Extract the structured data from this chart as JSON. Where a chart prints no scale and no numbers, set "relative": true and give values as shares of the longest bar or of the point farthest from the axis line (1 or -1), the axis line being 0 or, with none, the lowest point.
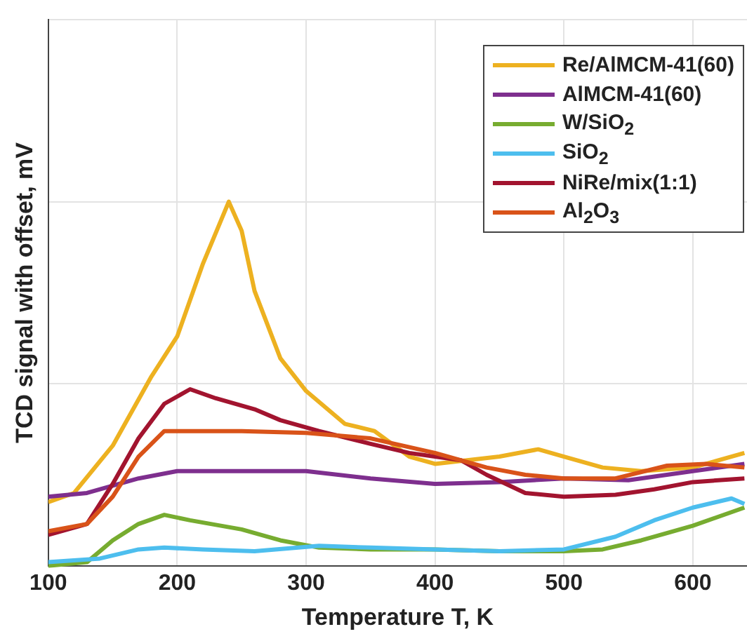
{
  "chart_data": {
    "type": "line",
    "xlabel": "Temperature T, K",
    "ylabel": "TCD signal with offset, mV",
    "relative": true,
    "grid": true,
    "legend": "top right",
    "marker": "none",
    "xlim": [
      100,
      642
    ],
    "xticks": [
      100,
      200,
      300,
      400,
      500,
      600
    ],
    "series": [
      {
        "name": "Re/AlMCM-41(60)",
        "color": "#edb120",
        "x": [
          100,
          120,
          150,
          180,
          200,
          220,
          240,
          250,
          260,
          280,
          300,
          330,
          353,
          380,
          400,
          450,
          480,
          500,
          530,
          560,
          600,
          640
        ],
        "values": [
          0.175,
          0.2,
          0.33,
          0.52,
          0.63,
          0.83,
          1.0,
          0.92,
          0.755,
          0.57,
          0.48,
          0.39,
          0.37,
          0.3,
          0.28,
          0.3,
          0.32,
          0.3,
          0.27,
          0.26,
          0.27,
          0.31
        ]
      },
      {
        "name": "AlMCM-41(60)",
        "color": "#7e2f8e",
        "x": [
          100,
          130,
          170,
          200,
          250,
          300,
          350,
          400,
          450,
          500,
          550,
          600,
          640
        ],
        "values": [
          0.19,
          0.2,
          0.24,
          0.26,
          0.26,
          0.26,
          0.24,
          0.225,
          0.23,
          0.24,
          0.235,
          0.26,
          0.28
        ]
      },
      {
        "name": "W/SiO$_{2}$",
        "color": "#77ac30",
        "x": [
          100,
          130,
          150,
          170,
          190,
          210,
          250,
          280,
          310,
          350,
          400,
          450,
          500,
          530,
          560,
          600,
          640
        ],
        "values": [
          0.0,
          0.01,
          0.07,
          0.115,
          0.14,
          0.125,
          0.1,
          0.07,
          0.05,
          0.045,
          0.045,
          0.04,
          0.04,
          0.045,
          0.07,
          0.11,
          0.16
        ]
      },
      {
        "name": "SiO$_{2}$",
        "color": "#4dbeee",
        "x": [
          100,
          140,
          170,
          190,
          220,
          260,
          310,
          350,
          400,
          450,
          500,
          540,
          570,
          600,
          630,
          640
        ],
        "values": [
          0.01,
          0.02,
          0.045,
          0.05,
          0.045,
          0.04,
          0.055,
          0.05,
          0.045,
          0.04,
          0.045,
          0.08,
          0.125,
          0.16,
          0.185,
          0.17
        ]
      },
      {
        "name": "NiRe/mix(1:1)",
        "color": "#a2142f",
        "x": [
          100,
          130,
          150,
          170,
          190,
          210,
          230,
          260,
          280,
          310,
          350,
          380,
          420,
          440,
          470,
          500,
          540,
          570,
          600,
          640
        ],
        "values": [
          0.085,
          0.115,
          0.225,
          0.35,
          0.445,
          0.485,
          0.46,
          0.43,
          0.4,
          0.37,
          0.335,
          0.31,
          0.29,
          0.25,
          0.2,
          0.19,
          0.195,
          0.21,
          0.23,
          0.24
        ]
      },
      {
        "name": "Al$_{2}$O$_{3}$",
        "color": "#d95319",
        "x": [
          100,
          130,
          150,
          170,
          190,
          250,
          300,
          350,
          400,
          440,
          470,
          500,
          540,
          580,
          610,
          640
        ],
        "values": [
          0.095,
          0.115,
          0.19,
          0.3,
          0.37,
          0.37,
          0.365,
          0.35,
          0.31,
          0.27,
          0.25,
          0.24,
          0.24,
          0.275,
          0.28,
          0.27
        ]
      }
    ]
  }
}
